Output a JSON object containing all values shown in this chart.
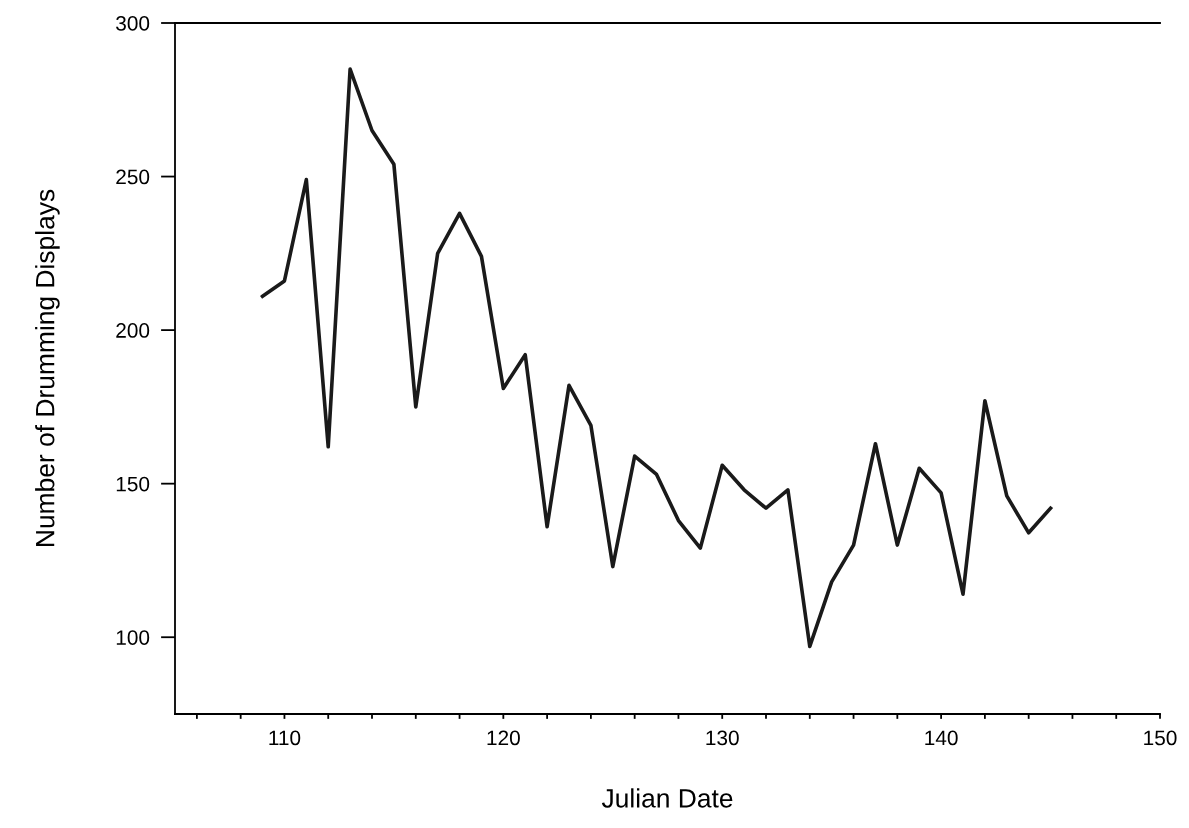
{
  "chart_data": {
    "type": "line",
    "xlabel": "Julian Date",
    "ylabel": "Number of Drumming Displays",
    "x": [
      109,
      110,
      111,
      112,
      113,
      114,
      115,
      116,
      117,
      118,
      119,
      120,
      121,
      122,
      123,
      124,
      125,
      126,
      127,
      128,
      129,
      130,
      131,
      132,
      133,
      134,
      135,
      136,
      137,
      138,
      139,
      140,
      141,
      142,
      143,
      144,
      145
    ],
    "series": [
      {
        "color": "#1a1a1a",
        "values": [
          211,
          216,
          249,
          162,
          285,
          265,
          254,
          175,
          225,
          238,
          224,
          181,
          192,
          136,
          182,
          169,
          123,
          159,
          153,
          138,
          129,
          156,
          148,
          142,
          148,
          97,
          118,
          130,
          163,
          130,
          155,
          147,
          114,
          177,
          146,
          134,
          142
        ]
      }
    ],
    "xlim": [
      105,
      150
    ],
    "ylim": [
      75,
      300
    ],
    "xticks": [
      {
        "value": 106,
        "label": null
      },
      {
        "value": 108,
        "label": null
      },
      110,
      {
        "value": 112,
        "label": null
      },
      {
        "value": 114,
        "label": null
      },
      {
        "value": 116,
        "label": null
      },
      {
        "value": 118,
        "label": null
      },
      120,
      {
        "value": 122,
        "label": null
      },
      {
        "value": 124,
        "label": null
      },
      {
        "value": 126,
        "label": null
      },
      {
        "value": 128,
        "label": null
      },
      130,
      {
        "value": 132,
        "label": null
      },
      {
        "value": 134,
        "label": null
      },
      {
        "value": 136,
        "label": null
      },
      {
        "value": 138,
        "label": null
      },
      140,
      {
        "value": 142,
        "label": null
      },
      {
        "value": 144,
        "label": null
      },
      {
        "value": 146,
        "label": null
      },
      {
        "value": 148,
        "label": null
      },
      150
    ],
    "yticks": [
      100,
      150,
      200,
      250,
      300
    ],
    "grid": false,
    "legend": false,
    "marker": "none",
    "line_style": "solid"
  }
}
